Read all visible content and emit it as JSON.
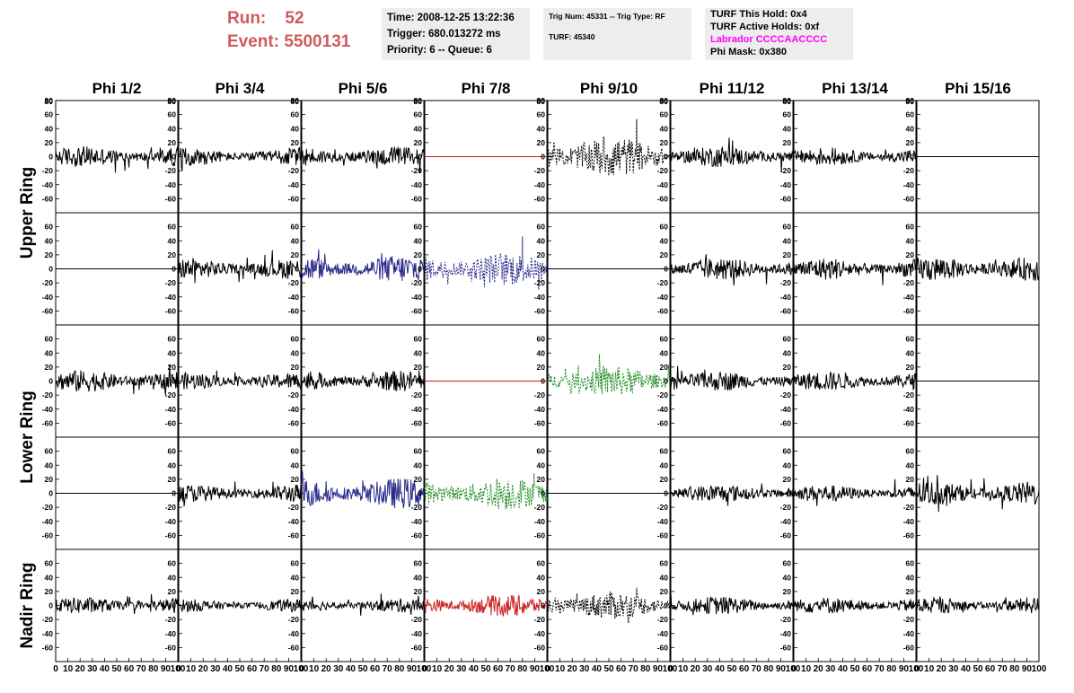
{
  "header": {
    "run_label": "Run:",
    "run_value": "52",
    "event_label": "Event:",
    "event_value": "5500131"
  },
  "info_boxes": {
    "time": {
      "line1": "Time: 2008-12-25 13:22:36",
      "line2": "Trigger: 680.013272 ms",
      "line3": "Priority: 6 -- Queue: 6"
    },
    "trig": {
      "line1": "Trig Num: 45331 -- Trig Type: RF",
      "line2": "TURF: 45340"
    },
    "turf": {
      "line1": "TURF This Hold: 0x4",
      "line2": "TURF Active Holds: 0xf",
      "line3": "Labrador CCCCAACCCC",
      "line4": "Phi Mask: 0x380",
      "highlight_color": "#ff00ff"
    }
  },
  "chart_data": {
    "type": "line",
    "columns": [
      "Phi 1/2",
      "Phi 3/4",
      "Phi 5/6",
      "Phi 7/8",
      "Phi 9/10",
      "Phi 11/12",
      "Phi 13/14",
      "Phi 15/16"
    ],
    "row_groups": [
      {
        "label": "Upper Ring",
        "rows": [
          0,
          1
        ]
      },
      {
        "label": "Lower Ring",
        "rows": [
          2,
          3
        ]
      },
      {
        "label": "Nadir Ring",
        "rows": [
          4
        ]
      }
    ],
    "ylim": [
      -80,
      80
    ],
    "xlim": [
      0,
      100
    ],
    "y_ticks": [
      -60,
      -40,
      -20,
      0,
      20,
      40,
      60,
      80
    ],
    "x_ticks": [
      0,
      10,
      20,
      30,
      40,
      50,
      60,
      70,
      80,
      90,
      100
    ],
    "grid": false,
    "legend": "none",
    "styles": {
      "n": {
        "color": "#000000",
        "dash": false
      },
      "d": {
        "color": "#000000",
        "dash": true
      },
      "b": {
        "color": "#2b2b8c",
        "dash": false
      },
      "g": {
        "color": "#1f8a1f",
        "dash": true
      },
      "bd": {
        "color": "#2b2b8c",
        "dash": true
      },
      "f": {
        "color": "#000000",
        "dash": false
      },
      "fr": {
        "color": "#cc2222",
        "dash": false
      },
      "r": {
        "color": "#cc2222",
        "dash": false
      }
    },
    "cells": [
      [
        {
          "s": "n",
          "a": 15
        },
        {
          "s": "n",
          "a": 13
        },
        {
          "s": "n",
          "a": 15
        },
        {
          "s": "fr",
          "a": 0
        },
        {
          "s": "d",
          "a": 30
        },
        {
          "s": "n",
          "a": 15
        },
        {
          "s": "n",
          "a": 13
        },
        {
          "s": "f",
          "a": 0
        }
      ],
      [
        {
          "s": "f",
          "a": 0
        },
        {
          "s": "n",
          "a": 15
        },
        {
          "s": "b",
          "a": 20
        },
        {
          "s": "bd",
          "a": 24
        },
        {
          "s": "f",
          "a": 0
        },
        {
          "s": "n",
          "a": 16
        },
        {
          "s": "n",
          "a": 16
        },
        {
          "s": "n",
          "a": 18
        }
      ],
      [
        {
          "s": "n",
          "a": 16
        },
        {
          "s": "n",
          "a": 12
        },
        {
          "s": "n",
          "a": 15
        },
        {
          "s": "fr",
          "a": 0
        },
        {
          "s": "g",
          "a": 22
        },
        {
          "s": "n",
          "a": 14
        },
        {
          "s": "n",
          "a": 14
        },
        {
          "s": "f",
          "a": 0
        }
      ],
      [
        {
          "s": "f",
          "a": 0
        },
        {
          "s": "n",
          "a": 13
        },
        {
          "s": "b",
          "a": 22
        },
        {
          "s": "g",
          "a": 24
        },
        {
          "s": "f",
          "a": 0
        },
        {
          "s": "n",
          "a": 13
        },
        {
          "s": "n",
          "a": 12
        },
        {
          "s": "n",
          "a": 18
        }
      ],
      [
        {
          "s": "n",
          "a": 12
        },
        {
          "s": "n",
          "a": 9
        },
        {
          "s": "n",
          "a": 10
        },
        {
          "s": "r",
          "a": 16
        },
        {
          "s": "d",
          "a": 20
        },
        {
          "s": "n",
          "a": 13
        },
        {
          "s": "n",
          "a": 12
        },
        {
          "s": "n",
          "a": 12
        }
      ]
    ]
  }
}
